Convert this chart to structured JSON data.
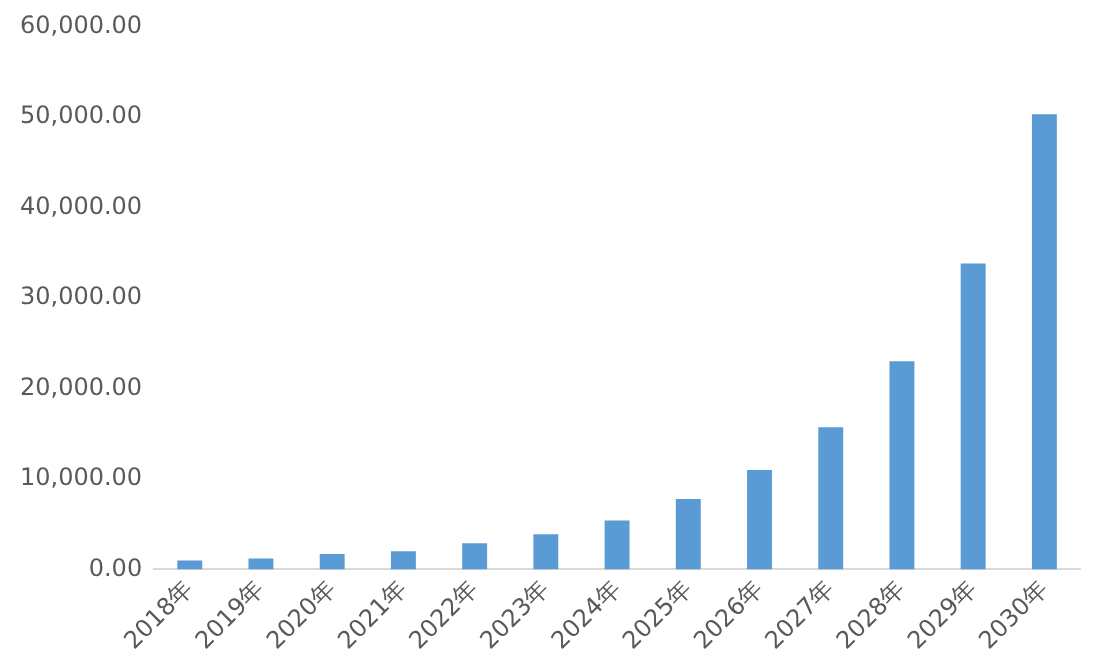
{
  "chart_data": {
    "type": "bar",
    "categories": [
      "2018年",
      "2019年",
      "2020年",
      "2021年",
      "2022年",
      "2023年",
      "2024年",
      "2025年",
      "2026年",
      "2027年",
      "2028年",
      "2029年",
      "2030年"
    ],
    "values": [
      1000,
      1200,
      1700,
      2000,
      2900,
      3900,
      5400,
      7800,
      11000,
      15700,
      23000,
      33800,
      50300
    ],
    "color": "#5b9bd5",
    "ylim": [
      0,
      60000
    ],
    "yticks": [
      {
        "value": 0,
        "label": "0.00"
      },
      {
        "value": 10000,
        "label": "10,000.00"
      },
      {
        "value": 20000,
        "label": "20,000.00"
      },
      {
        "value": 30000,
        "label": "30,000.00"
      },
      {
        "value": 40000,
        "label": "40,000.00"
      },
      {
        "value": 50000,
        "label": "50,000.00"
      },
      {
        "value": 60000,
        "label": "60,000.00"
      }
    ],
    "grid": false,
    "legend": false
  }
}
